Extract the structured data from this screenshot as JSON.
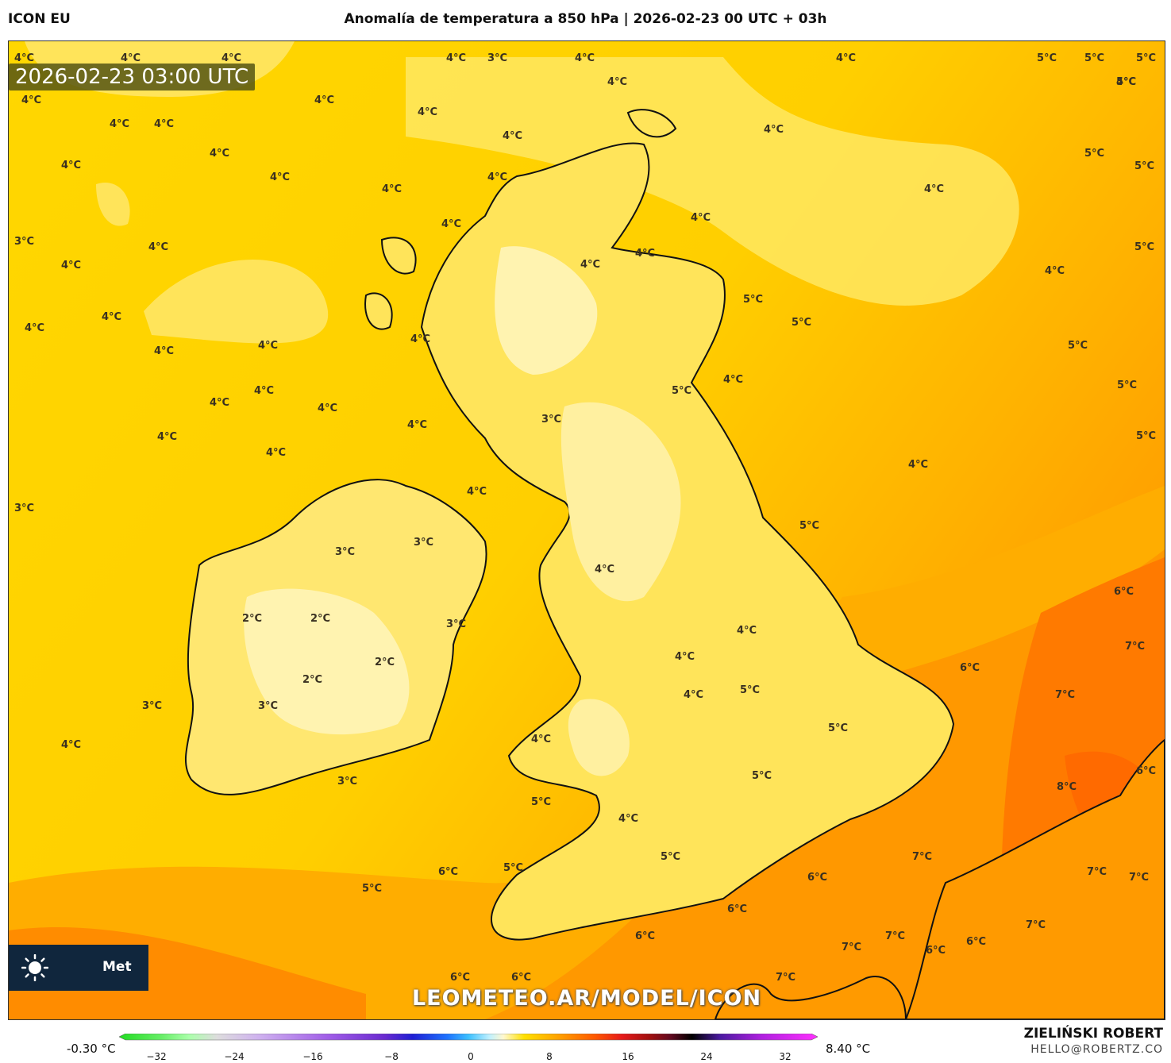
{
  "header": {
    "model": "ICON EU",
    "title": "Anomalía de temperatura a 850 hPa | 2026-02-23 00 UTC + 03h"
  },
  "map": {
    "timestamp": "2026-02-23 03:00 UTC",
    "watermark": "LEOMETEO.AR/MODEL/ICON",
    "logo_text": "Met",
    "labels": [
      "4°C",
      "4°C",
      "4°C",
      "4°C",
      "3°C",
      "4°C",
      "4°C",
      "5°C",
      "5°C",
      "5°C",
      "4°C",
      "4°C",
      "4°C",
      "4°C",
      "5°C",
      "4°C",
      "4°C",
      "4°C",
      "4°C",
      "4°C",
      "5°C",
      "4°C",
      "3°C",
      "4°C",
      "4°C",
      "4°C",
      "4°C",
      "4°C",
      "4°C",
      "5°C",
      "4°C",
      "4°C",
      "4°C",
      "4°C",
      "4°C",
      "5°C",
      "4°C",
      "4°C",
      "4°C",
      "5°C",
      "4°C",
      "5°C",
      "4°C",
      "4°C",
      "4°C",
      "3°C",
      "4°C",
      "4°C",
      "5°C",
      "4°C",
      "4°C",
      "4°C",
      "5°C",
      "3°C",
      "4°C",
      "3°C",
      "3°C",
      "5°C",
      "5°C",
      "4°C",
      "6°C",
      "2°C",
      "2°C",
      "3°C",
      "4°C",
      "7°C",
      "2°C",
      "2°C",
      "6°C",
      "4°C",
      "5°C",
      "3°C",
      "3°C",
      "7°C",
      "4°C",
      "4°C",
      "5°C",
      "5°C",
      "4°C",
      "6°C",
      "3°C",
      "4°C",
      "5°C",
      "8°C",
      "5°C",
      "4°C",
      "5°C",
      "7°C",
      "5°C",
      "6°C",
      "7°C",
      "5°C",
      "7°C",
      "6°C",
      "7°C",
      "6°C",
      "7°C",
      "6°C",
      "6°C",
      "7°C",
      "6°C",
      "6°C",
      "6°C",
      "7°C",
      "4°C"
    ]
  },
  "colorbar": {
    "min_label": "-0.30 °C",
    "max_label": "8.40 °C",
    "ticks": [
      "−32",
      "−24",
      "−16",
      "−8",
      "0",
      "8",
      "16",
      "24",
      "32"
    ]
  },
  "credits": {
    "author": "ZIELIŃSKI ROBERT",
    "email": "HELLO@ROBERTZ.CO"
  },
  "colors": {
    "anomaly_2": "#fff6c8",
    "anomaly_3": "#ffe96a",
    "anomaly_4": "#ffd700",
    "anomaly_5": "#ffbf00",
    "anomaly_6": "#ffa500",
    "anomaly_7": "#ff8c00",
    "anomaly_8": "#ff6f00",
    "coastline": "#111111"
  }
}
